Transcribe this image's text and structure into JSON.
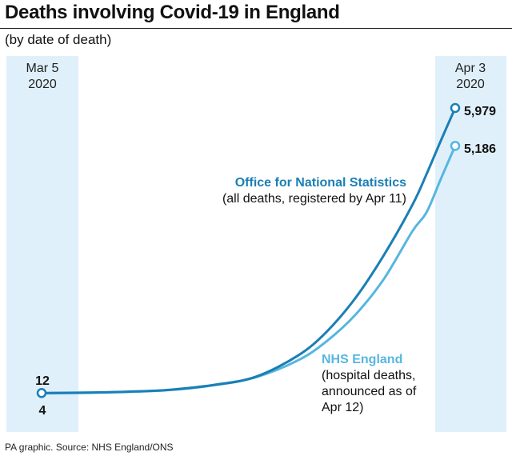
{
  "title": "Deaths involving Covid-19 in England",
  "subtitle": "(by date of death)",
  "source": "PA graphic. Source: NHS England/ONS",
  "colors": {
    "ons": "#1a7fb5",
    "nhs": "#56b6e0",
    "highlight": "#dff0fa"
  },
  "chart_data": {
    "type": "line",
    "xlim": [
      "2020-03-05",
      "2020-04-03"
    ],
    "x_markers": [
      {
        "date": "2020-03-05",
        "label_line1": "Mar 5",
        "label_line2": "2020"
      },
      {
        "date": "2020-04-03",
        "label_line1": "Apr 3",
        "label_line2": "2020"
      }
    ],
    "grid": false,
    "series": [
      {
        "name": "Office for National Statistics",
        "note": "(all deaths, registered by Apr 11)",
        "color": "#1a7fb5",
        "start_label": "12",
        "end_label": "5,979",
        "x": [
          "2020-03-05",
          "2020-03-08",
          "2020-03-11",
          "2020-03-14",
          "2020-03-17",
          "2020-03-20",
          "2020-03-23",
          "2020-03-25",
          "2020-03-27",
          "2020-03-29",
          "2020-03-31",
          "2020-04-01",
          "2020-04-02",
          "2020-04-03"
        ],
        "y": [
          12,
          20,
          40,
          80,
          180,
          350,
          800,
          1300,
          2000,
          2900,
          3950,
          4600,
          5300,
          5979
        ]
      },
      {
        "name": "NHS England",
        "note_lines": [
          "(hospital deaths,",
          "announced as of",
          "Apr 12)"
        ],
        "color": "#56b6e0",
        "start_label": "4",
        "end_label": "5,186",
        "x": [
          "2020-03-05",
          "2020-03-08",
          "2020-03-11",
          "2020-03-14",
          "2020-03-17",
          "2020-03-20",
          "2020-03-23",
          "2020-03-25",
          "2020-03-27",
          "2020-03-29",
          "2020-03-31",
          "2020-04-01",
          "2020-04-02",
          "2020-04-03"
        ],
        "y": [
          4,
          15,
          35,
          75,
          170,
          340,
          700,
          1100,
          1650,
          2400,
          3400,
          3800,
          4500,
          5186
        ]
      }
    ]
  }
}
